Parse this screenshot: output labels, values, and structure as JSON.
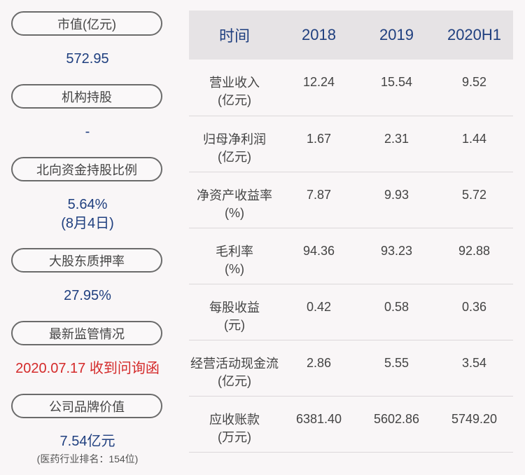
{
  "left": {
    "market_cap": {
      "label": "市值(亿元)",
      "value": "572.95"
    },
    "institutional": {
      "label": "机构持股",
      "value": "-"
    },
    "northbound": {
      "label": "北向资金持股比例",
      "value": "5.64%",
      "note": "(8月4日)"
    },
    "pledge": {
      "label": "大股东质押率",
      "value": "27.95%"
    },
    "regulation": {
      "label": "最新监管情况",
      "value": "2020.07.17 收到问询函"
    },
    "brand": {
      "label": "公司品牌价值",
      "value": "7.54亿元",
      "note": "(医药行业排名：154位)"
    }
  },
  "table": {
    "headers": [
      "时间",
      "2018",
      "2019",
      "2020H1"
    ],
    "rows": [
      {
        "label1": "营业收入",
        "label2": "(亿元)",
        "v": [
          "12.24",
          "15.54",
          "9.52"
        ]
      },
      {
        "label1": "归母净利润",
        "label2": "(亿元)",
        "v": [
          "1.67",
          "2.31",
          "1.44"
        ]
      },
      {
        "label1": "净资产收益率",
        "label2": "(%)",
        "v": [
          "7.87",
          "9.93",
          "5.72"
        ]
      },
      {
        "label1": "毛利率",
        "label2": "(%)",
        "v": [
          "94.36",
          "93.23",
          "92.88"
        ]
      },
      {
        "label1": "每股收益",
        "label2": "(元)",
        "v": [
          "0.42",
          "0.58",
          "0.36"
        ]
      },
      {
        "label1": "经营活动现金流",
        "label2": "(亿元)",
        "v": [
          "2.86",
          "5.55",
          "3.54"
        ]
      },
      {
        "label1": "应收账款",
        "label2": "(万元)",
        "v": [
          "6381.40",
          "5602.86",
          "5749.20"
        ]
      }
    ]
  }
}
